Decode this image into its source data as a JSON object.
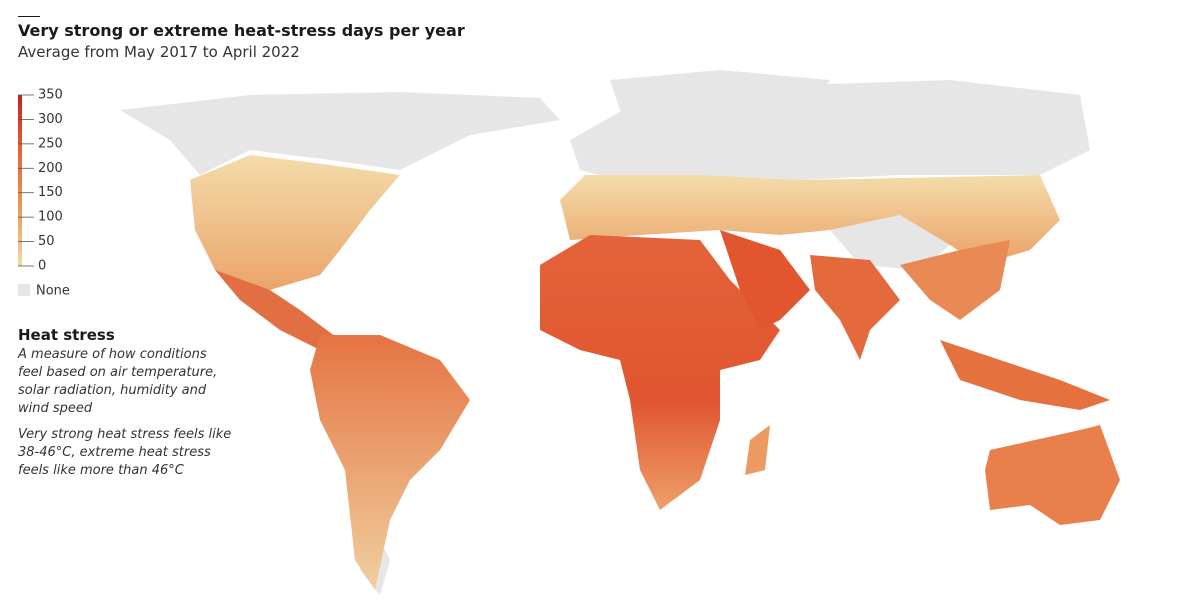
{
  "header": {
    "title": "Very strong or extreme heat-stress days per year",
    "subtitle": "Average from May 2017 to April 2022"
  },
  "legend": {
    "ticks": [
      0,
      50,
      100,
      150,
      200,
      250,
      300,
      350
    ],
    "colors": [
      "#f1d9a3",
      "#ec9a5c",
      "#e4643a",
      "#c8201c"
    ],
    "none_label": "None",
    "none_color": "#e6e6e6"
  },
  "notes": {
    "title": "Heat stress",
    "paragraphs": [
      [
        "A measure of how conditions",
        "feel based on air temperature,",
        "solar radiation, humidity and",
        "wind speed"
      ],
      [
        "Very strong heat stress feels like",
        "38-46°C, extreme heat stress",
        "feels like more than 46°C"
      ]
    ]
  }
}
